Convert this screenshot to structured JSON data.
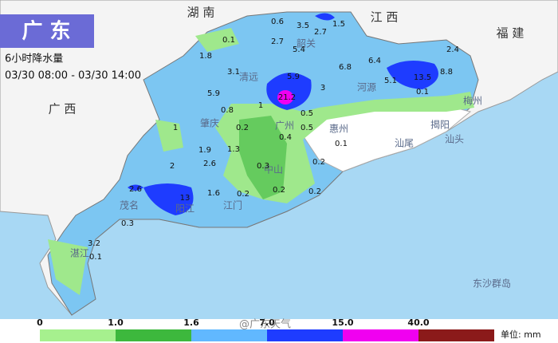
{
  "header": {
    "title": "广 东",
    "subtitle": "6小时降水量",
    "time": "03/30 08:00 - 03/30 14:00"
  },
  "regions": [
    "湖 南",
    "江 西",
    "福 建",
    "广 西"
  ],
  "cities": [
    "清远",
    "韶关",
    "河源",
    "梅州",
    "肇庆",
    "广州",
    "惠州",
    "揭阳",
    "汕尾",
    "汕头",
    "中山",
    "江门",
    "阳江",
    "茂名",
    "湛江",
    "东沙群岛"
  ],
  "rain_labels": [
    "0.6",
    "3.5",
    "2.7",
    "1.5",
    "0.1",
    "2.7",
    "5.4",
    "1.8",
    "3.1",
    "6.8",
    "6.4",
    "2.4",
    "5.9",
    "5.9",
    "3",
    "21.2",
    "5.1",
    "13.5",
    "8.8",
    "0.1",
    "0.8",
    "1",
    "0.5",
    "0.2",
    "0.5",
    "0.4",
    "0.1",
    "1",
    "1.9",
    "1.3",
    "0.3",
    "2.6",
    "2",
    "0.2",
    "2.6",
    "13",
    "1.6",
    "0.2",
    "0.3",
    "3.2",
    "0.1",
    "0.2",
    "0.2"
  ],
  "legend": {
    "labels": [
      "0",
      "1.0",
      "1.6",
      "7.0",
      "15.0",
      "40.0"
    ],
    "unit": "单位: mm"
  },
  "watermark": "@广东天气"
}
